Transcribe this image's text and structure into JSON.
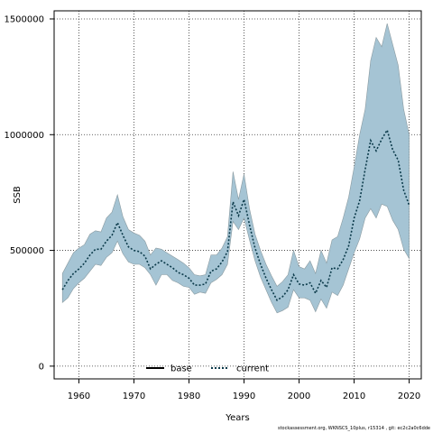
{
  "chart_data": {
    "type": "area",
    "title": "",
    "xlabel": "Years",
    "ylabel": "SSB",
    "xlim": [
      1955.5,
      2022.2
    ],
    "ylim": [
      -55000,
      1535000
    ],
    "x_ticks": [
      1960,
      1970,
      1980,
      1990,
      2000,
      2010,
      2020
    ],
    "y_ticks": [
      0,
      500000,
      1000000,
      1500000
    ],
    "y_tick_labels": [
      "0",
      "500000",
      "1000000",
      "1500000"
    ],
    "grid": true,
    "legend_position": "bottom-center",
    "legend": [
      {
        "label": "base",
        "style": "solid",
        "color": "#000000"
      },
      {
        "label": "current",
        "style": "dotted",
        "color": "#0b3a4a"
      }
    ],
    "band_color": "#a5c4d4",
    "band_edge_color": "#8a9aa0",
    "x": [
      1957,
      1958,
      1959,
      1960,
      1961,
      1962,
      1963,
      1964,
      1965,
      1966,
      1967,
      1968,
      1969,
      1970,
      1971,
      1972,
      1973,
      1974,
      1975,
      1976,
      1977,
      1978,
      1979,
      1980,
      1981,
      1982,
      1983,
      1984,
      1985,
      1986,
      1987,
      1988,
      1989,
      1990,
      1991,
      1992,
      1993,
      1994,
      1995,
      1996,
      1997,
      1998,
      1999,
      2000,
      2001,
      2002,
      2003,
      2004,
      2005,
      2006,
      2007,
      2008,
      2009,
      2010,
      2011,
      2012,
      2013,
      2014,
      2015,
      2016,
      2017,
      2018,
      2019,
      2020
    ],
    "series": [
      {
        "name": "current",
        "values": [
          330000,
          370000,
          400000,
          420000,
          445000,
          480000,
          505000,
          505000,
          540000,
          565000,
          620000,
          565000,
          515000,
          500000,
          495000,
          475000,
          420000,
          440000,
          455000,
          440000,
          425000,
          405000,
          395000,
          380000,
          350000,
          350000,
          355000,
          410000,
          420000,
          450000,
          495000,
          710000,
          650000,
          720000,
          610000,
          510000,
          440000,
          380000,
          330000,
          285000,
          300000,
          330000,
          395000,
          355000,
          350000,
          360000,
          315000,
          370000,
          340000,
          425000,
          420000,
          460000,
          520000,
          640000,
          715000,
          850000,
          975000,
          930000,
          980000,
          1020000,
          935000,
          890000,
          760000,
          695000
        ],
        "lower": [
          275000,
          295000,
          335000,
          360000,
          380000,
          410000,
          440000,
          435000,
          470000,
          490000,
          540000,
          485000,
          450000,
          440000,
          440000,
          425000,
          395000,
          350000,
          395000,
          395000,
          370000,
          360000,
          345000,
          340000,
          310000,
          320000,
          315000,
          360000,
          375000,
          395000,
          440000,
          625000,
          590000,
          640000,
          545000,
          455000,
          385000,
          330000,
          275000,
          230000,
          240000,
          255000,
          330000,
          295000,
          295000,
          285000,
          235000,
          290000,
          250000,
          320000,
          305000,
          350000,
          420000,
          490000,
          550000,
          640000,
          680000,
          640000,
          700000,
          690000,
          630000,
          590000,
          505000,
          465000
        ],
        "upper": [
          400000,
          445000,
          490000,
          510000,
          525000,
          570000,
          585000,
          580000,
          640000,
          665000,
          740000,
          645000,
          590000,
          575000,
          565000,
          540000,
          480000,
          510000,
          505000,
          490000,
          475000,
          460000,
          445000,
          425000,
          395000,
          390000,
          395000,
          480000,
          480000,
          510000,
          560000,
          840000,
          720000,
          830000,
          680000,
          570000,
          500000,
          440000,
          390000,
          345000,
          365000,
          395000,
          500000,
          430000,
          420000,
          455000,
          400000,
          500000,
          445000,
          545000,
          560000,
          640000,
          730000,
          860000,
          1000000,
          1110000,
          1320000,
          1420000,
          1380000,
          1480000,
          1390000,
          1300000,
          1110000,
          1000000
        ]
      }
    ]
  },
  "footer": {
    "text": "stockassessment.org, WKNSCS_10plus, r15314 , git: ec2c2a0c6dde"
  }
}
